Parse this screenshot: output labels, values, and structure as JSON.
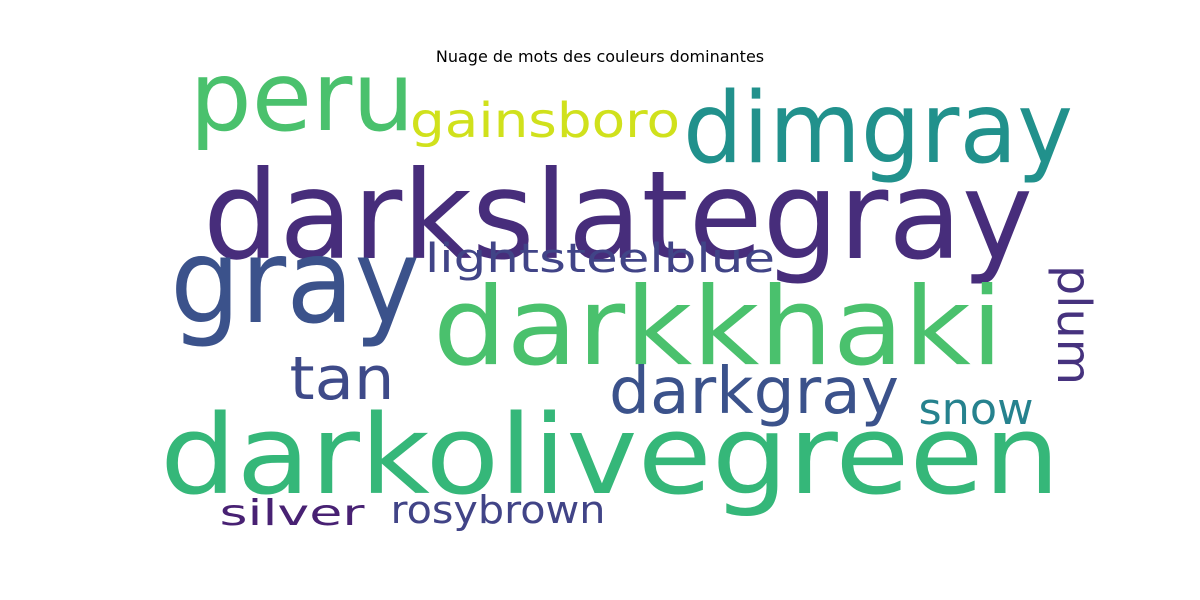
{
  "chart_data": {
    "type": "wordcloud",
    "title": "Nuage de mots des couleurs dominantes",
    "words": [
      {
        "text": "darkslategray",
        "color": "#472d7b"
      },
      {
        "text": "darkolivegreen",
        "color": "#35b779"
      },
      {
        "text": "darkkhaki",
        "color": "#4ac16d"
      },
      {
        "text": "gray",
        "color": "#3b528b"
      },
      {
        "text": "dimgray",
        "color": "#21918c"
      },
      {
        "text": "peru",
        "color": "#4ac16d"
      },
      {
        "text": "darkgray",
        "color": "#3b528b"
      },
      {
        "text": "tan",
        "color": "#3e4a89"
      },
      {
        "text": "gainsboro",
        "color": "#d0e11c"
      },
      {
        "text": "lightsteelblue",
        "color": "#414487"
      },
      {
        "text": "plum",
        "color": "#46327e"
      },
      {
        "text": "snow",
        "color": "#26828e"
      },
      {
        "text": "rosybrown",
        "color": "#414487"
      },
      {
        "text": "silver",
        "color": "#482173"
      }
    ]
  }
}
